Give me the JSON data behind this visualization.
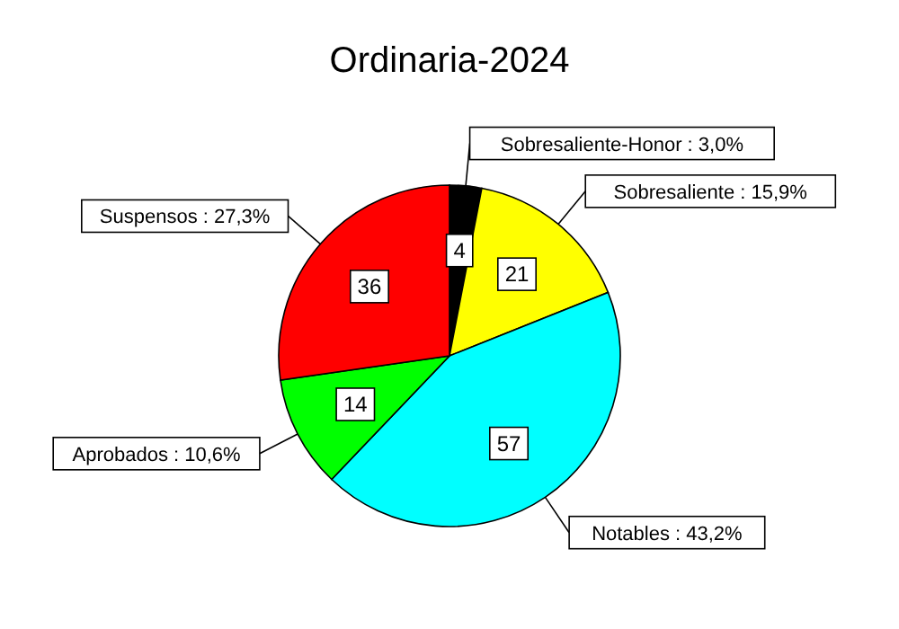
{
  "chart_data": {
    "type": "pie",
    "title": "Ordinaria-2024",
    "categories": [
      "Sobresaliente-Honor : 3,0%",
      "Sobresaliente : 15,9%",
      "Notables : 43,2%",
      "Aprobados : 10,6%",
      "Suspensos : 27,3%"
    ],
    "values": [
      4,
      21,
      57,
      14,
      36
    ],
    "colors": [
      "#000000",
      "#ffff00",
      "#00ffff",
      "#00ff00",
      "#ff0000"
    ],
    "data_labels": true
  }
}
